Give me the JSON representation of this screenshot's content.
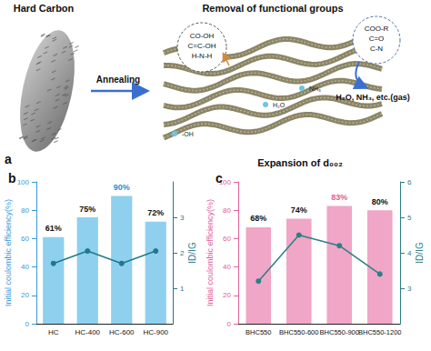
{
  "panel_a": {
    "label": "a",
    "material": "Hard Carbon",
    "heading": "Removal of functional groups",
    "process": "Annealing",
    "groups_left": [
      "CO-OH",
      "C=C-OH",
      "H-N-H"
    ],
    "groups_right": [
      "COO-R",
      "C=O",
      "C-N"
    ],
    "gas": "H₂O, NH₃, etc.(gas)",
    "species": [
      "H₂O",
      "NH₃",
      "-OH"
    ],
    "result": "Expansion of d₀₀₂"
  },
  "chart_data": [
    {
      "type": "bar",
      "title": "b",
      "categories": [
        "HC",
        "HC-400",
        "HC-600",
        "HC-900"
      ],
      "ylabel": "Initial coulombic efficiency(%)",
      "y2label": "ID/IG",
      "ylim": [
        0,
        100
      ],
      "yticks": [
        0,
        20,
        40,
        60,
        80,
        100
      ],
      "y2lim": [
        0,
        4
      ],
      "y2ticks": [
        1,
        2,
        3
      ],
      "grid": false,
      "series": [
        {
          "type": "bar",
          "color": "#8fd0ef",
          "values": [
            61,
            75,
            90,
            72
          ],
          "value_labels": [
            "61%",
            "75%",
            "90%",
            "72%"
          ],
          "data_labels": true
        },
        {
          "type": "line",
          "axis": "y2",
          "color": "#1f7a8c",
          "marker": "circle",
          "line_style": "solid",
          "values": [
            1.7,
            2.05,
            1.7,
            2.05
          ]
        }
      ]
    },
    {
      "type": "bar",
      "title": "c",
      "categories": [
        "BHC550",
        "BHC550-600",
        "BHC550-900",
        "BHC550-1200"
      ],
      "ylabel": "Initial coulombic efficiency(%)",
      "y2label": "ID/IG",
      "ylim": [
        0,
        100
      ],
      "yticks": [
        0,
        20,
        40,
        60,
        80,
        100
      ],
      "y2lim": [
        2,
        6
      ],
      "y2ticks": [
        3,
        4,
        5,
        6
      ],
      "grid": false,
      "series": [
        {
          "type": "bar",
          "color": "#f0a6c6",
          "values": [
            68,
            74,
            83,
            80
          ],
          "value_labels": [
            "68%",
            "74%",
            "83%",
            "80%"
          ],
          "data_labels": true
        },
        {
          "type": "line",
          "axis": "y2",
          "color": "#2a7f86",
          "marker": "circle",
          "line_style": "solid",
          "values": [
            3.2,
            4.5,
            4.2,
            3.4
          ]
        }
      ]
    }
  ]
}
